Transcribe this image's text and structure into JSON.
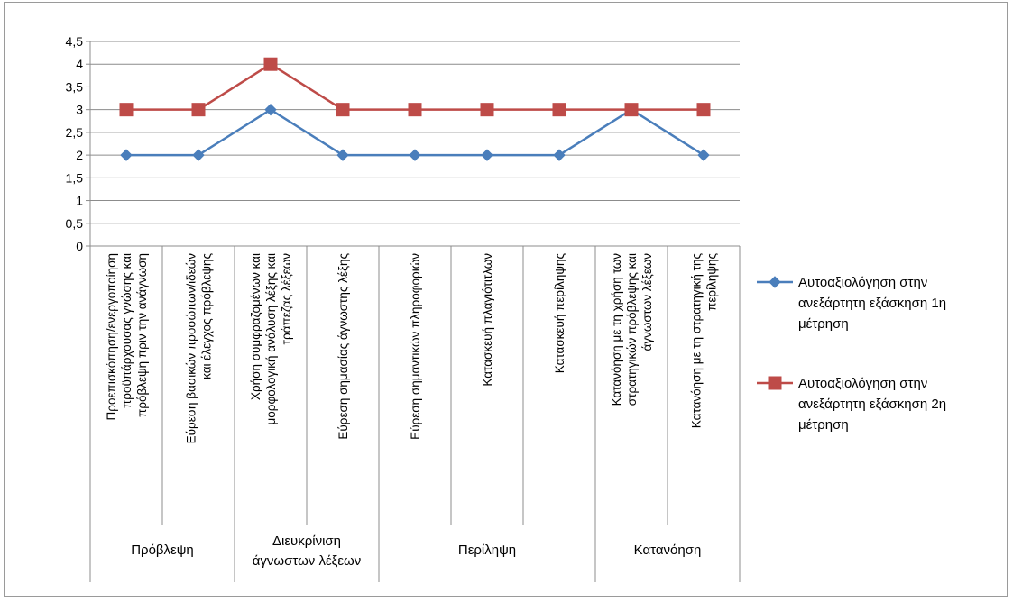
{
  "chart_data": {
    "type": "line",
    "title": "",
    "xlabel": "",
    "ylabel": "",
    "ylim": [
      0,
      4.5
    ],
    "yticks": [
      "0",
      "0,5",
      "1",
      "1,5",
      "2",
      "2,5",
      "3",
      "3,5",
      "4",
      "4,5"
    ],
    "grid": true,
    "legend_position": "right",
    "categories": [
      [
        "Προεπισκόπηση/ενεργοποίηση",
        "προϋπάρχουσας γνώσης και",
        "πρόβλεψη πριν την ανάγνωση"
      ],
      [
        "Εύρεση βασικών προσώπων/ιδεών",
        "και έλεγχος πρόβλεψης"
      ],
      [
        "Χρήση συμφραζομένων και",
        "μορφολογική ανάλυση λέξης και",
        "τράπεζας λέξεων"
      ],
      [
        "Εύρεση σημασίας άγνωστης λέξης"
      ],
      [
        "Εύρεση σημαντικών πληροφοριών"
      ],
      [
        "Κατασκευή πλαγιότιτλων"
      ],
      [
        "Κατασκευή περίληψης"
      ],
      [
        "Κατανόηση με τη χρήση των",
        "στρατηγικών πρόβλεψης και",
        "άγνωστων λέξεων"
      ],
      [
        "Κατανόηση με τη στρατηγική της",
        "περίληψης"
      ]
    ],
    "groups": [
      {
        "label": [
          "Πρόβλεψη"
        ],
        "start": 0,
        "end": 1
      },
      {
        "label": [
          "Διευκρίνιση",
          "άγνωστων λέξεων"
        ],
        "start": 2,
        "end": 3
      },
      {
        "label": [
          "Περίληψη"
        ],
        "start": 4,
        "end": 6
      },
      {
        "label": [
          "Κατανόηση"
        ],
        "start": 7,
        "end": 8
      }
    ],
    "series": [
      {
        "name": "Αυτοαξιολόγηση στην ανεξάρτητη εξάσκηση 1η μέτρηση",
        "legend_lines": [
          "Αυτοαξιολόγηση στην",
          "ανεξάρτητη εξάσκηση 1η",
          "μέτρηση"
        ],
        "marker": "diamond",
        "color": "#4a7ebb",
        "values": [
          2,
          2,
          3,
          2,
          2,
          2,
          2,
          3,
          2
        ]
      },
      {
        "name": "Αυτοαξιολόγηση στην ανεξάρτητη εξάσκηση 2η μέτρηση",
        "legend_lines": [
          "Αυτοαξιολόγηση στην",
          "ανεξάρτητη εξάσκηση 2η",
          "μέτρηση"
        ],
        "marker": "square",
        "color": "#be4b48",
        "values": [
          3,
          3,
          4,
          3,
          3,
          3,
          3,
          3,
          3
        ]
      }
    ]
  }
}
